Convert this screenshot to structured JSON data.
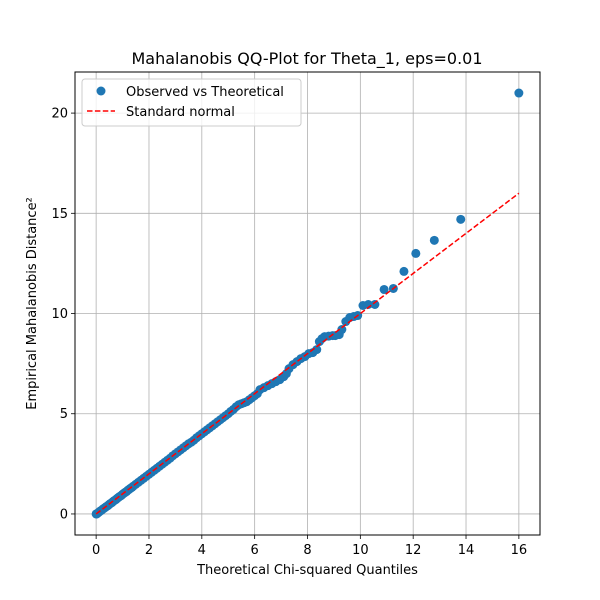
{
  "chart_data": {
    "type": "scatter",
    "title": "Mahalanobis QQ-Plot for Theta_1, eps=0.01",
    "xlabel": "Theoretical Chi-squared Quantiles",
    "ylabel": "Empirical Mahalanobis Distance²",
    "xlim": [
      -0.8,
      16.8
    ],
    "ylim": [
      -1.05,
      22.05
    ],
    "xticks": [
      0,
      2,
      4,
      6,
      8,
      10,
      12,
      14,
      16
    ],
    "yticks": [
      0,
      5,
      10,
      15,
      20
    ],
    "grid": true,
    "legend_position": "top-left",
    "colors": {
      "points": "#1f77b4",
      "reference": "#ff0000",
      "grid": "#b0b0b0"
    },
    "series": [
      {
        "name": "Observed vs Theoretical",
        "kind": "scatter",
        "points": [
          [
            0.0,
            0.0
          ],
          [
            0.02,
            0.0
          ],
          [
            0.05,
            0.03
          ],
          [
            0.1,
            0.08
          ],
          [
            0.15,
            0.14
          ],
          [
            0.2,
            0.18
          ],
          [
            0.25,
            0.24
          ],
          [
            0.3,
            0.28
          ],
          [
            0.35,
            0.33
          ],
          [
            0.4,
            0.38
          ],
          [
            0.45,
            0.42
          ],
          [
            0.5,
            0.48
          ],
          [
            0.55,
            0.53
          ],
          [
            0.6,
            0.57
          ],
          [
            0.65,
            0.63
          ],
          [
            0.7,
            0.68
          ],
          [
            0.75,
            0.72
          ],
          [
            0.8,
            0.78
          ],
          [
            0.85,
            0.83
          ],
          [
            0.9,
            0.88
          ],
          [
            0.95,
            0.92
          ],
          [
            1.0,
            0.98
          ],
          [
            1.05,
            1.03
          ],
          [
            1.1,
            1.08
          ],
          [
            1.15,
            1.12
          ],
          [
            1.2,
            1.18
          ],
          [
            1.25,
            1.23
          ],
          [
            1.3,
            1.28
          ],
          [
            1.35,
            1.32
          ],
          [
            1.4,
            1.38
          ],
          [
            1.5,
            1.48
          ],
          [
            1.6,
            1.58
          ],
          [
            1.7,
            1.68
          ],
          [
            1.8,
            1.78
          ],
          [
            1.9,
            1.88
          ],
          [
            2.0,
            1.98
          ],
          [
            2.1,
            2.08
          ],
          [
            2.2,
            2.18
          ],
          [
            2.3,
            2.28
          ],
          [
            2.4,
            2.38
          ],
          [
            2.5,
            2.48
          ],
          [
            2.6,
            2.58
          ],
          [
            2.7,
            2.68
          ],
          [
            2.8,
            2.78
          ],
          [
            2.9,
            2.9
          ],
          [
            3.0,
            3.0
          ],
          [
            3.1,
            3.1
          ],
          [
            3.2,
            3.2
          ],
          [
            3.3,
            3.3
          ],
          [
            3.4,
            3.4
          ],
          [
            3.5,
            3.5
          ],
          [
            3.6,
            3.58
          ],
          [
            3.7,
            3.68
          ],
          [
            3.8,
            3.8
          ],
          [
            3.9,
            3.9
          ],
          [
            4.0,
            4.0
          ],
          [
            4.1,
            4.1
          ],
          [
            4.2,
            4.2
          ],
          [
            4.3,
            4.3
          ],
          [
            4.4,
            4.4
          ],
          [
            4.5,
            4.5
          ],
          [
            4.6,
            4.6
          ],
          [
            4.7,
            4.7
          ],
          [
            4.8,
            4.8
          ],
          [
            4.9,
            4.9
          ],
          [
            5.0,
            5.0
          ],
          [
            5.1,
            5.12
          ],
          [
            5.2,
            5.22
          ],
          [
            5.3,
            5.35
          ],
          [
            5.4,
            5.45
          ],
          [
            5.5,
            5.5
          ],
          [
            5.6,
            5.55
          ],
          [
            5.7,
            5.6
          ],
          [
            5.8,
            5.7
          ],
          [
            5.9,
            5.8
          ],
          [
            6.0,
            5.9
          ],
          [
            6.1,
            6.0
          ],
          [
            6.2,
            6.2
          ],
          [
            6.35,
            6.3
          ],
          [
            6.5,
            6.4
          ],
          [
            6.65,
            6.5
          ],
          [
            6.8,
            6.6
          ],
          [
            6.95,
            6.7
          ],
          [
            7.1,
            6.85
          ],
          [
            7.2,
            7.0
          ],
          [
            7.3,
            7.25
          ],
          [
            7.45,
            7.45
          ],
          [
            7.6,
            7.6
          ],
          [
            7.75,
            7.75
          ],
          [
            7.9,
            7.85
          ],
          [
            8.05,
            8.0
          ],
          [
            8.2,
            8.05
          ],
          [
            8.35,
            8.2
          ],
          [
            8.45,
            8.6
          ],
          [
            8.55,
            8.75
          ],
          [
            8.65,
            8.85
          ],
          [
            8.8,
            8.87
          ],
          [
            8.95,
            8.9
          ],
          [
            9.05,
            8.9
          ],
          [
            9.2,
            8.95
          ],
          [
            9.3,
            9.2
          ],
          [
            9.45,
            9.6
          ],
          [
            9.6,
            9.8
          ],
          [
            9.75,
            9.85
          ],
          [
            9.9,
            9.9
          ],
          [
            10.1,
            10.4
          ],
          [
            10.3,
            10.45
          ],
          [
            10.55,
            10.45
          ],
          [
            10.9,
            11.2
          ],
          [
            11.25,
            11.25
          ],
          [
            11.65,
            12.1
          ],
          [
            12.1,
            13.0
          ],
          [
            12.8,
            13.65
          ],
          [
            13.8,
            14.7
          ],
          [
            16.0,
            21.0
          ]
        ]
      },
      {
        "name": "Standard normal",
        "kind": "line",
        "dash": true,
        "points": [
          [
            0,
            0
          ],
          [
            16,
            16
          ]
        ]
      }
    ]
  }
}
